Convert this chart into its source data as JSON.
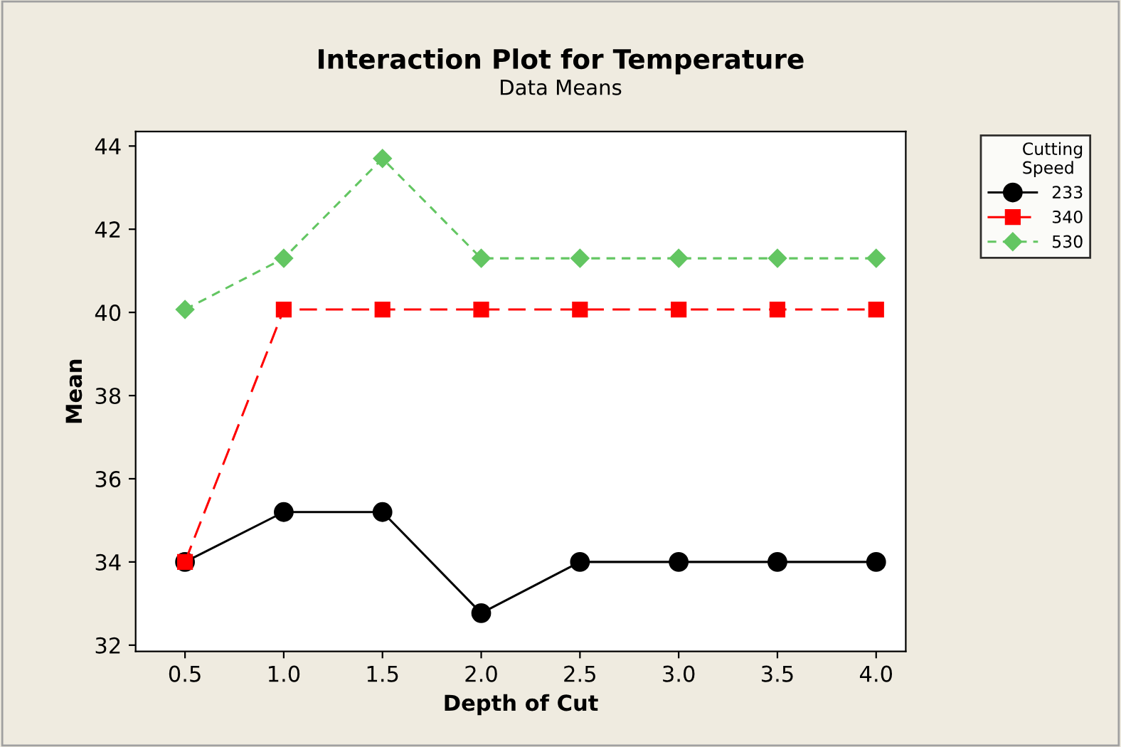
{
  "chart_data": {
    "type": "line",
    "title": "Interaction Plot for Temperature",
    "subtitle": "Data Means",
    "xlabel": "Depth of Cut",
    "ylabel": "Mean",
    "legend_title": "Cutting\nSpeed",
    "x": [
      0.5,
      1.0,
      1.5,
      2.0,
      2.5,
      3.0,
      3.5,
      4.0
    ],
    "series": [
      {
        "name": "233",
        "color": "#000000",
        "marker": "circle",
        "line_style": "solid",
        "values": [
          34.0,
          35.2,
          35.2,
          32.77,
          34.0,
          34.0,
          34.0,
          34.0
        ]
      },
      {
        "name": "340",
        "color": "#ff0000",
        "marker": "square",
        "line_style": "dashed",
        "values": [
          34.0,
          40.07,
          40.07,
          40.07,
          40.07,
          40.07,
          40.07,
          40.07
        ]
      },
      {
        "name": "530",
        "color": "#63c662",
        "marker": "diamond",
        "line_style": "dotted",
        "values": [
          40.07,
          41.3,
          43.7,
          41.3,
          41.3,
          41.3,
          41.3,
          41.3
        ]
      }
    ],
    "xlim": [
      0.25,
      4.15
    ],
    "ylim": [
      31.85,
      44.35
    ],
    "xticks": [
      {
        "value": 0.5,
        "label": "0.5"
      },
      {
        "value": 1.0,
        "label": "1.0"
      },
      {
        "value": 1.5,
        "label": "1.5"
      },
      {
        "value": 2.0,
        "label": "2.0"
      },
      {
        "value": 2.5,
        "label": "2.5"
      },
      {
        "value": 3.0,
        "label": "3.0"
      },
      {
        "value": 3.5,
        "label": "3.5"
      },
      {
        "value": 4.0,
        "label": "4.0"
      }
    ],
    "yticks": [
      32,
      34,
      36,
      38,
      40,
      42,
      44
    ],
    "grid": false,
    "legend": "top right"
  }
}
